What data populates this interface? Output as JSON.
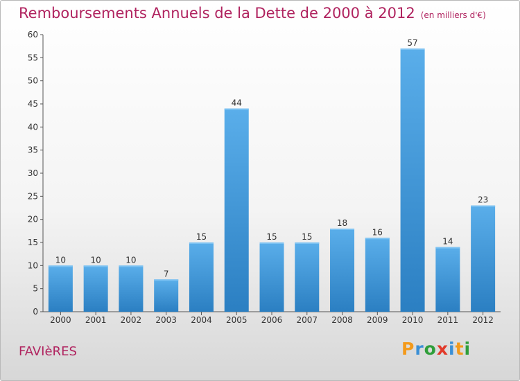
{
  "header": {
    "title": "Remboursements Annuels de la Dette de 2000 à 2012",
    "unit": "(en milliers d'€)"
  },
  "commune": "FAVIèRES",
  "logo": {
    "letters": [
      "P",
      "r",
      "o",
      "x",
      "i",
      "t",
      "i"
    ]
  },
  "colors": {
    "bar": "#3d95d8",
    "bar_light": "#5aaeea",
    "bar_dark": "#2b7fc2",
    "title": "#b0235f"
  },
  "chart_data": {
    "type": "bar",
    "categories": [
      "2000",
      "2001",
      "2002",
      "2003",
      "2004",
      "2005",
      "2006",
      "2007",
      "2008",
      "2009",
      "2010",
      "2011",
      "2012"
    ],
    "values": [
      10,
      10,
      10,
      7,
      15,
      44,
      15,
      15,
      18,
      16,
      57,
      14,
      23
    ],
    "ylim": [
      0,
      60
    ],
    "yticks": [
      0,
      5,
      10,
      15,
      20,
      25,
      30,
      35,
      40,
      45,
      50,
      55,
      60
    ],
    "grid": false,
    "legend": "none",
    "title": "Remboursements Annuels de la Dette de 2000 à 2012",
    "xlabel": "",
    "ylabel": ""
  }
}
